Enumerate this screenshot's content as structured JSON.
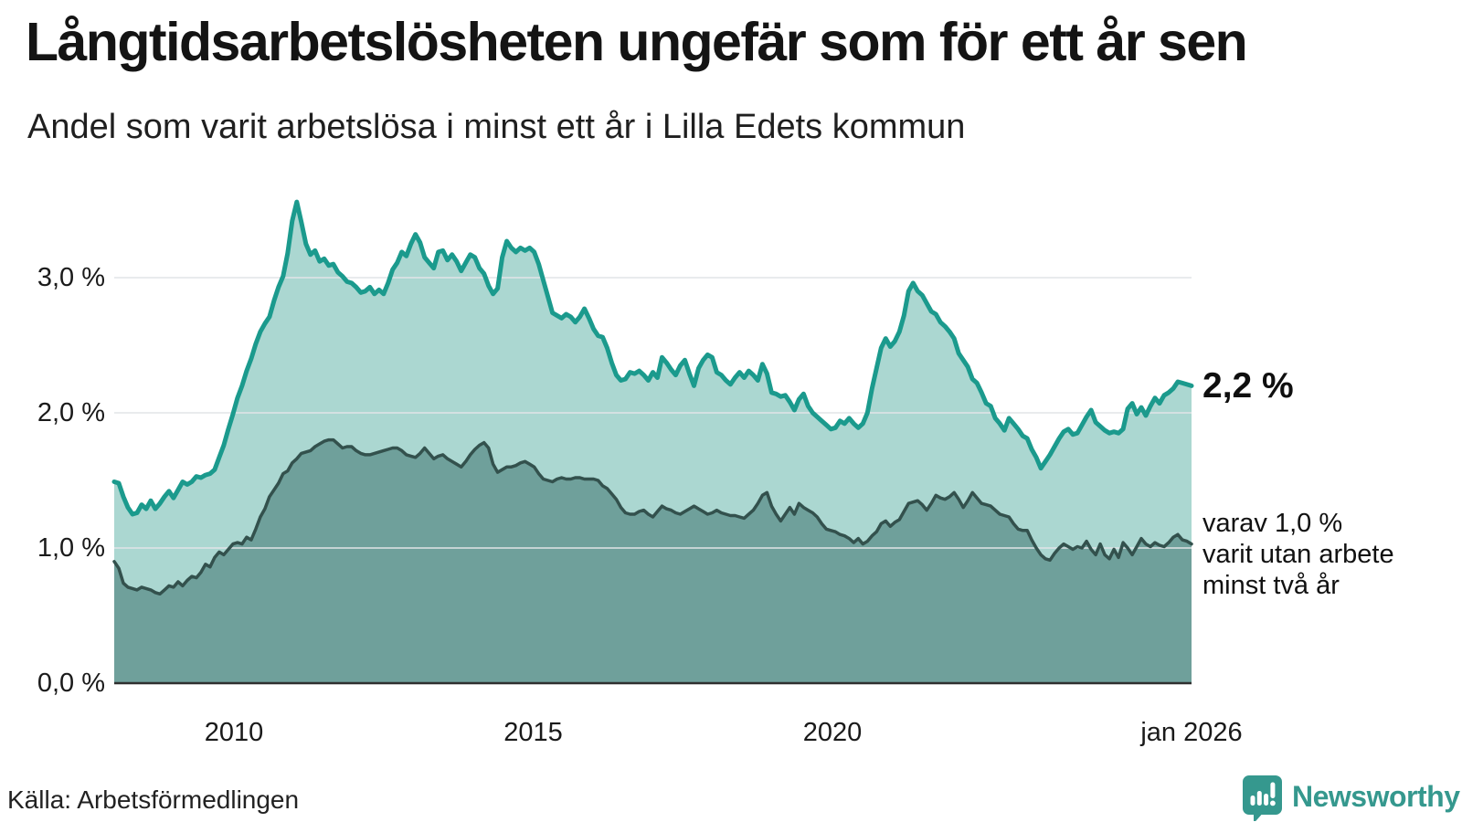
{
  "header": {
    "title": "Långtidsarbetslösheten ungefär som för ett år sen",
    "subtitle": "Andel som varit arbetslösa i minst ett år i Lilla Edets kommun"
  },
  "annotations": {
    "latest_total": "2,2 %",
    "latest_two_years_line1": "varav 1,0 %",
    "latest_two_years_line2": "varit utan arbete",
    "latest_two_years_line3": "minst två år"
  },
  "footer": {
    "source": "Källa: Arbetsförmedlingen",
    "brand": "Newsworthy"
  },
  "colors": {
    "total_line": "#1b9a8d",
    "total_fill": "#abd7d1",
    "two_years_line": "#33514d",
    "two_years_fill": "#6fa09b",
    "gridline": "#e2e4e7",
    "baseline": "#2f2f2f",
    "brand_teal": "#35988e"
  },
  "chart_data": {
    "type": "area",
    "title": "Långtidsarbetslösheten ungefär som för ett år sen",
    "subtitle": "Andel som varit arbetslösa i minst ett år i Lilla Edets kommun",
    "unit": "percent",
    "x_start": 2008.0,
    "x_end": 2026.0,
    "ylim": [
      0,
      3.75
    ],
    "grid": true,
    "legend_position": "right-annotations",
    "x_ticks": [
      {
        "label": "2010",
        "year": 2010
      },
      {
        "label": "2015",
        "year": 2015
      },
      {
        "label": "2020",
        "year": 2020
      },
      {
        "label": "jan 2026",
        "year": 2026
      }
    ],
    "y_ticks": [
      {
        "label": "3,0 %",
        "value": 3
      },
      {
        "label": "2,0 %",
        "value": 2
      },
      {
        "label": "1,0 %",
        "value": 1
      },
      {
        "label": "0,0 %",
        "value": 0
      }
    ],
    "latest": {
      "total": 2.2,
      "two_years": 1.0
    },
    "series": [
      {
        "name": "Arbetslösa minst ett år",
        "values": [
          1.49,
          1.48,
          1.38,
          1.3,
          1.25,
          1.26,
          1.32,
          1.29,
          1.35,
          1.29,
          1.33,
          1.38,
          1.42,
          1.37,
          1.43,
          1.49,
          1.47,
          1.49,
          1.53,
          1.52,
          1.54,
          1.55,
          1.58,
          1.67,
          1.76,
          1.88,
          1.99,
          2.11,
          2.2,
          2.31,
          2.4,
          2.51,
          2.6,
          2.66,
          2.71,
          2.83,
          2.93,
          3.01,
          3.18,
          3.42,
          3.56,
          3.41,
          3.25,
          3.17,
          3.2,
          3.12,
          3.14,
          3.09,
          3.1,
          3.04,
          3.01,
          2.97,
          2.96,
          2.93,
          2.89,
          2.9,
          2.93,
          2.88,
          2.91,
          2.88,
          2.96,
          3.06,
          3.11,
          3.19,
          3.16,
          3.25,
          3.32,
          3.26,
          3.15,
          3.11,
          3.07,
          3.19,
          3.2,
          3.13,
          3.17,
          3.12,
          3.05,
          3.11,
          3.17,
          3.15,
          3.07,
          3.03,
          2.94,
          2.88,
          2.92,
          3.15,
          3.27,
          3.22,
          3.19,
          3.22,
          3.2,
          3.22,
          3.19,
          3.1,
          2.98,
          2.86,
          2.74,
          2.72,
          2.7,
          2.73,
          2.71,
          2.67,
          2.71,
          2.77,
          2.7,
          2.62,
          2.57,
          2.56,
          2.48,
          2.37,
          2.28,
          2.24,
          2.25,
          2.3,
          2.29,
          2.31,
          2.28,
          2.24,
          2.3,
          2.26,
          2.41,
          2.37,
          2.32,
          2.28,
          2.35,
          2.39,
          2.29,
          2.2,
          2.33,
          2.39,
          2.43,
          2.41,
          2.3,
          2.28,
          2.24,
          2.21,
          2.26,
          2.3,
          2.26,
          2.31,
          2.28,
          2.24,
          2.36,
          2.29,
          2.15,
          2.14,
          2.12,
          2.13,
          2.08,
          2.02,
          2.1,
          2.14,
          2.05,
          2.0,
          1.97,
          1.94,
          1.91,
          1.88,
          1.89,
          1.94,
          1.92,
          1.96,
          1.92,
          1.89,
          1.92,
          2.0,
          2.18,
          2.33,
          2.48,
          2.55,
          2.49,
          2.53,
          2.6,
          2.72,
          2.9,
          2.96,
          2.9,
          2.87,
          2.81,
          2.75,
          2.73,
          2.67,
          2.64,
          2.6,
          2.55,
          2.44,
          2.39,
          2.34,
          2.25,
          2.22,
          2.15,
          2.07,
          2.05,
          1.96,
          1.92,
          1.87,
          1.96,
          1.92,
          1.88,
          1.83,
          1.81,
          1.73,
          1.67,
          1.59,
          1.64,
          1.69,
          1.75,
          1.81,
          1.86,
          1.88,
          1.84,
          1.85,
          1.91,
          1.97,
          2.02,
          1.93,
          1.9,
          1.87,
          1.85,
          1.86,
          1.85,
          1.88,
          2.03,
          2.07,
          1.99,
          2.04,
          1.98,
          2.05,
          2.11,
          2.07,
          2.13,
          2.15,
          2.18,
          2.23,
          2.22,
          2.21,
          2.2
        ]
      },
      {
        "name": "varav utan arbete minst två år",
        "values": [
          0.9,
          0.85,
          0.74,
          0.71,
          0.7,
          0.69,
          0.71,
          0.7,
          0.69,
          0.67,
          0.66,
          0.69,
          0.72,
          0.71,
          0.75,
          0.72,
          0.76,
          0.79,
          0.78,
          0.82,
          0.88,
          0.86,
          0.93,
          0.97,
          0.95,
          0.99,
          1.03,
          1.04,
          1.03,
          1.08,
          1.06,
          1.14,
          1.23,
          1.29,
          1.38,
          1.43,
          1.48,
          1.55,
          1.57,
          1.63,
          1.66,
          1.7,
          1.71,
          1.72,
          1.75,
          1.77,
          1.79,
          1.8,
          1.8,
          1.77,
          1.74,
          1.75,
          1.75,
          1.72,
          1.7,
          1.69,
          1.69,
          1.7,
          1.71,
          1.72,
          1.73,
          1.74,
          1.74,
          1.72,
          1.69,
          1.68,
          1.67,
          1.7,
          1.74,
          1.7,
          1.66,
          1.68,
          1.69,
          1.66,
          1.64,
          1.62,
          1.6,
          1.64,
          1.69,
          1.73,
          1.76,
          1.78,
          1.74,
          1.62,
          1.56,
          1.58,
          1.6,
          1.6,
          1.61,
          1.63,
          1.64,
          1.62,
          1.6,
          1.55,
          1.51,
          1.5,
          1.49,
          1.51,
          1.52,
          1.51,
          1.51,
          1.52,
          1.52,
          1.51,
          1.51,
          1.51,
          1.5,
          1.46,
          1.44,
          1.4,
          1.36,
          1.3,
          1.26,
          1.25,
          1.25,
          1.27,
          1.28,
          1.25,
          1.23,
          1.27,
          1.31,
          1.29,
          1.28,
          1.26,
          1.25,
          1.27,
          1.29,
          1.31,
          1.29,
          1.27,
          1.25,
          1.26,
          1.28,
          1.26,
          1.25,
          1.24,
          1.24,
          1.23,
          1.22,
          1.25,
          1.28,
          1.33,
          1.39,
          1.41,
          1.31,
          1.25,
          1.2,
          1.25,
          1.3,
          1.25,
          1.33,
          1.3,
          1.28,
          1.26,
          1.23,
          1.18,
          1.14,
          1.13,
          1.12,
          1.1,
          1.09,
          1.07,
          1.04,
          1.07,
          1.03,
          1.05,
          1.09,
          1.12,
          1.18,
          1.2,
          1.16,
          1.19,
          1.21,
          1.27,
          1.33,
          1.34,
          1.35,
          1.32,
          1.28,
          1.33,
          1.39,
          1.37,
          1.36,
          1.38,
          1.41,
          1.36,
          1.3,
          1.35,
          1.41,
          1.37,
          1.33,
          1.32,
          1.31,
          1.28,
          1.25,
          1.24,
          1.23,
          1.18,
          1.14,
          1.13,
          1.13,
          1.06,
          1.0,
          0.95,
          0.92,
          0.91,
          0.96,
          1.0,
          1.03,
          1.01,
          0.99,
          1.01,
          1.0,
          1.05,
          0.99,
          0.95,
          1.03,
          0.95,
          0.92,
          0.99,
          0.93,
          1.04,
          1.0,
          0.95,
          1.01,
          1.07,
          1.03,
          1.01,
          1.04,
          1.02,
          1.01,
          1.04,
          1.08,
          1.1,
          1.06,
          1.05,
          1.03
        ]
      }
    ]
  }
}
